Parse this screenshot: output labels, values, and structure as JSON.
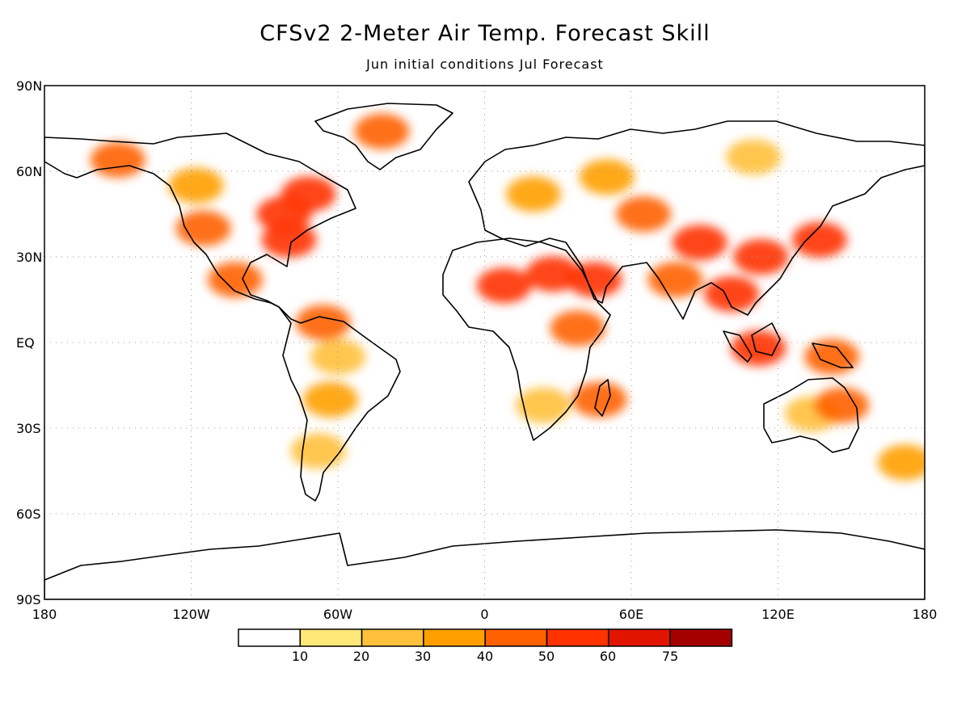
{
  "title": "CFSv2 2-Meter Air Temp. Forecast Skill",
  "subtitle": "Jun initial conditions   Jul Forecast",
  "lat_labels": [
    "90N",
    "60N",
    "30N",
    "EQ",
    "30S",
    "60S",
    "90S"
  ],
  "lon_labels": [
    "180",
    "120W",
    "60W",
    "0",
    "60E",
    "120E",
    "180"
  ],
  "legend": {
    "colors": [
      "#ffffff",
      "#ffe878",
      "#ffc03c",
      "#ffa000",
      "#ff6000",
      "#ff3200",
      "#e11400",
      "#a50000"
    ],
    "labels": [
      "10",
      "20",
      "30",
      "40",
      "50",
      "60",
      "75"
    ]
  },
  "chart_data": {
    "type": "heatmap",
    "projection": "cylindrical equidistant",
    "lon_range": [
      -180,
      180
    ],
    "lat_range": [
      -90,
      90
    ],
    "lon_ticks": [
      -180,
      -120,
      -60,
      0,
      60,
      120,
      180
    ],
    "lat_ticks": [
      90,
      60,
      30,
      0,
      -30,
      -60,
      -90
    ],
    "grid": "dotted",
    "levels": [
      10,
      20,
      30,
      40,
      50,
      60,
      75
    ],
    "regions": [
      {
        "name": "Alaska",
        "lon": -150,
        "lat": 64,
        "value": 40
      },
      {
        "name": "Western Canada",
        "lon": -118,
        "lat": 55,
        "value": 30
      },
      {
        "name": "Eastern Canada",
        "lon": -72,
        "lat": 52,
        "value": 55
      },
      {
        "name": "Great Lakes",
        "lon": -82,
        "lat": 45,
        "value": 55
      },
      {
        "name": "Eastern US",
        "lon": -80,
        "lat": 36,
        "value": 50
      },
      {
        "name": "Western US",
        "lon": -115,
        "lat": 40,
        "value": 40
      },
      {
        "name": "Mexico",
        "lon": -102,
        "lat": 22,
        "value": 45
      },
      {
        "name": "Greenland",
        "lon": -42,
        "lat": 74,
        "value": 40
      },
      {
        "name": "Amazon",
        "lon": -60,
        "lat": -5,
        "value": 25
      },
      {
        "name": "Northern South America",
        "lon": -66,
        "lat": 7,
        "value": 40
      },
      {
        "name": "Central South America",
        "lon": -63,
        "lat": -20,
        "value": 30
      },
      {
        "name": "Argentina",
        "lon": -68,
        "lat": -38,
        "value": 25
      },
      {
        "name": "Sahara",
        "lon": 8,
        "lat": 20,
        "value": 50
      },
      {
        "name": "Egypt / Red Sea",
        "lon": 28,
        "lat": 24,
        "value": 55
      },
      {
        "name": "Arabia",
        "lon": 45,
        "lat": 22,
        "value": 50
      },
      {
        "name": "East Africa",
        "lon": 38,
        "lat": 5,
        "value": 45
      },
      {
        "name": "Southern Africa",
        "lon": 24,
        "lat": -22,
        "value": 20
      },
      {
        "name": "Madagascar",
        "lon": 47,
        "lat": -20,
        "value": 40
      },
      {
        "name": "Europe",
        "lon": 20,
        "lat": 52,
        "value": 30
      },
      {
        "name": "Russia",
        "lon": 50,
        "lat": 58,
        "value": 35
      },
      {
        "name": "Central Asia",
        "lon": 65,
        "lat": 45,
        "value": 40
      },
      {
        "name": "Tibet / Western China",
        "lon": 88,
        "lat": 35,
        "value": 55
      },
      {
        "name": "Eastern China",
        "lon": 113,
        "lat": 30,
        "value": 55
      },
      {
        "name": "India",
        "lon": 78,
        "lat": 22,
        "value": 40
      },
      {
        "name": "Southeast Asia",
        "lon": 101,
        "lat": 17,
        "value": 50
      },
      {
        "name": "Siberia",
        "lon": 110,
        "lat": 65,
        "value": 25
      },
      {
        "name": "Japan",
        "lon": 137,
        "lat": 36,
        "value": 50
      },
      {
        "name": "Indonesia",
        "lon": 112,
        "lat": -2,
        "value": 50
      },
      {
        "name": "New Guinea",
        "lon": 142,
        "lat": -5,
        "value": 45
      },
      {
        "name": "Australia",
        "lon": 134,
        "lat": -25,
        "value": 25
      },
      {
        "name": "Queensland",
        "lon": 146,
        "lat": -22,
        "value": 40
      },
      {
        "name": "New Zealand",
        "lon": 172,
        "lat": -42,
        "value": 35
      }
    ]
  }
}
